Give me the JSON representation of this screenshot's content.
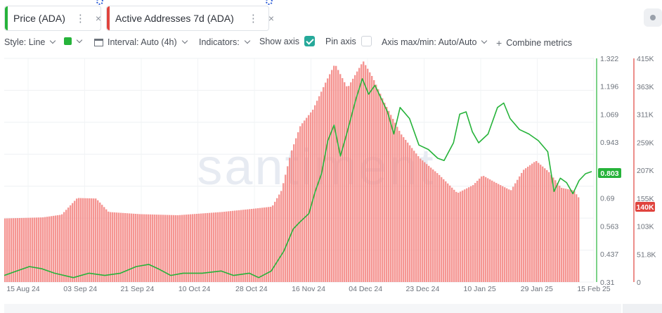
{
  "tabs": [
    {
      "label": "Price (ADA)",
      "color": "#26b33a"
    },
    {
      "label": "Active Addresses 7d (ADA)",
      "color": "#e0443e"
    }
  ],
  "icons": {
    "more": "⋮",
    "close": "×"
  },
  "toolbar": {
    "style": "Style: Line",
    "interval": "Interval: Auto (4h)",
    "indicators": "Indicators:",
    "show_axis": "Show axis",
    "pin_axis": "Pin axis",
    "axis_maxmin": "Axis max/min: Auto/Auto",
    "combine": "Combine metrics"
  },
  "watermark": "santiment",
  "chart_data": {
    "type": "line",
    "x_ticks": [
      "15 Aug 24",
      "03 Sep 24",
      "21 Sep 24",
      "10 Oct 24",
      "28 Oct 24",
      "16 Nov 24",
      "04 Dec 24",
      "23 Dec 24",
      "10 Jan 25",
      "29 Jan 25",
      "15 Feb 25"
    ],
    "x_range": [
      "2024-08-12",
      "2025-02-15"
    ],
    "price_axis": {
      "ticks": [
        "1.322",
        "1.196",
        "1.069",
        "0.943",
        "0.69",
        "0.563",
        "0.437",
        "0.31"
      ],
      "range": [
        0.31,
        1.322
      ],
      "current": "0.803",
      "current_value": 0.803,
      "color": "#26b33a"
    },
    "addresses_axis": {
      "ticks": [
        "415K",
        "363K",
        "311K",
        "259K",
        "207K",
        "155K",
        "103K",
        "51.8K",
        "0"
      ],
      "range": [
        0,
        415000
      ],
      "current": "140K",
      "current_value": 140000,
      "color": "#e0443e"
    },
    "series": [
      {
        "name": "Price (ADA)",
        "type": "line",
        "color": "#26b33a",
        "points": [
          [
            "2024-08-12",
            0.34
          ],
          [
            "2024-08-16",
            0.36
          ],
          [
            "2024-08-20",
            0.38
          ],
          [
            "2024-08-24",
            0.37
          ],
          [
            "2024-08-28",
            0.35
          ],
          [
            "2024-09-03",
            0.33
          ],
          [
            "2024-09-08",
            0.35
          ],
          [
            "2024-09-13",
            0.34
          ],
          [
            "2024-09-18",
            0.35
          ],
          [
            "2024-09-23",
            0.38
          ],
          [
            "2024-09-27",
            0.39
          ],
          [
            "2024-09-30",
            0.37
          ],
          [
            "2024-10-04",
            0.34
          ],
          [
            "2024-10-08",
            0.35
          ],
          [
            "2024-10-14",
            0.35
          ],
          [
            "2024-10-20",
            0.36
          ],
          [
            "2024-10-24",
            0.34
          ],
          [
            "2024-10-29",
            0.35
          ],
          [
            "2024-11-01",
            0.33
          ],
          [
            "2024-11-05",
            0.36
          ],
          [
            "2024-11-09",
            0.45
          ],
          [
            "2024-11-12",
            0.55
          ],
          [
            "2024-11-14",
            0.58
          ],
          [
            "2024-11-17",
            0.62
          ],
          [
            "2024-11-19",
            0.72
          ],
          [
            "2024-11-21",
            0.8
          ],
          [
            "2024-11-23",
            0.95
          ],
          [
            "2024-11-25",
            1.02
          ],
          [
            "2024-11-27",
            0.88
          ],
          [
            "2024-11-29",
            0.98
          ],
          [
            "2024-12-02",
            1.14
          ],
          [
            "2024-12-04",
            1.23
          ],
          [
            "2024-12-06",
            1.16
          ],
          [
            "2024-12-08",
            1.2
          ],
          [
            "2024-12-10",
            1.14
          ],
          [
            "2024-12-12",
            1.08
          ],
          [
            "2024-12-14",
            0.98
          ],
          [
            "2024-12-16",
            1.1
          ],
          [
            "2024-12-19",
            1.05
          ],
          [
            "2024-12-22",
            0.93
          ],
          [
            "2024-12-25",
            0.91
          ],
          [
            "2024-12-28",
            0.87
          ],
          [
            "2024-12-30",
            0.86
          ],
          [
            "2025-01-02",
            0.94
          ],
          [
            "2025-01-04",
            1.07
          ],
          [
            "2025-01-06",
            1.08
          ],
          [
            "2025-01-08",
            0.99
          ],
          [
            "2025-01-10",
            0.94
          ],
          [
            "2025-01-13",
            0.98
          ],
          [
            "2025-01-16",
            1.1
          ],
          [
            "2025-01-18",
            1.12
          ],
          [
            "2025-01-20",
            1.05
          ],
          [
            "2025-01-23",
            1.0
          ],
          [
            "2025-01-26",
            0.98
          ],
          [
            "2025-01-29",
            0.95
          ],
          [
            "2025-02-01",
            0.9
          ],
          [
            "2025-02-03",
            0.72
          ],
          [
            "2025-02-05",
            0.78
          ],
          [
            "2025-02-07",
            0.76
          ],
          [
            "2025-02-09",
            0.71
          ],
          [
            "2025-02-11",
            0.77
          ],
          [
            "2025-02-13",
            0.8
          ],
          [
            "2025-02-15",
            0.81
          ]
        ]
      },
      {
        "name": "Active Addresses 7d (ADA)",
        "type": "area",
        "color": "#e0443e",
        "points": [
          [
            "2024-08-12",
            118000
          ],
          [
            "2024-08-24",
            120000
          ],
          [
            "2024-08-30",
            125000
          ],
          [
            "2024-09-04",
            156000
          ],
          [
            "2024-09-10",
            155000
          ],
          [
            "2024-09-14",
            130000
          ],
          [
            "2024-09-24",
            126000
          ],
          [
            "2024-10-06",
            124000
          ],
          [
            "2024-10-20",
            130000
          ],
          [
            "2024-10-30",
            136000
          ],
          [
            "2024-11-05",
            140000
          ],
          [
            "2024-11-08",
            170000
          ],
          [
            "2024-11-11",
            240000
          ],
          [
            "2024-11-14",
            290000
          ],
          [
            "2024-11-18",
            320000
          ],
          [
            "2024-11-22",
            370000
          ],
          [
            "2024-11-25",
            405000
          ],
          [
            "2024-11-29",
            360000
          ],
          [
            "2024-12-01",
            380000
          ],
          [
            "2024-12-04",
            410000
          ],
          [
            "2024-12-07",
            380000
          ],
          [
            "2024-12-11",
            330000
          ],
          [
            "2024-12-16",
            275000
          ],
          [
            "2024-12-22",
            230000
          ],
          [
            "2024-12-28",
            200000
          ],
          [
            "2025-01-03",
            165000
          ],
          [
            "2025-01-08",
            180000
          ],
          [
            "2025-01-11",
            198000
          ],
          [
            "2025-01-15",
            185000
          ],
          [
            "2025-01-20",
            170000
          ],
          [
            "2025-01-24",
            208000
          ],
          [
            "2025-01-28",
            225000
          ],
          [
            "2025-02-01",
            205000
          ],
          [
            "2025-02-05",
            175000
          ],
          [
            "2025-02-09",
            170000
          ],
          [
            "2025-02-12",
            145000
          ],
          [
            "2025-02-15",
            140000
          ]
        ]
      }
    ]
  }
}
